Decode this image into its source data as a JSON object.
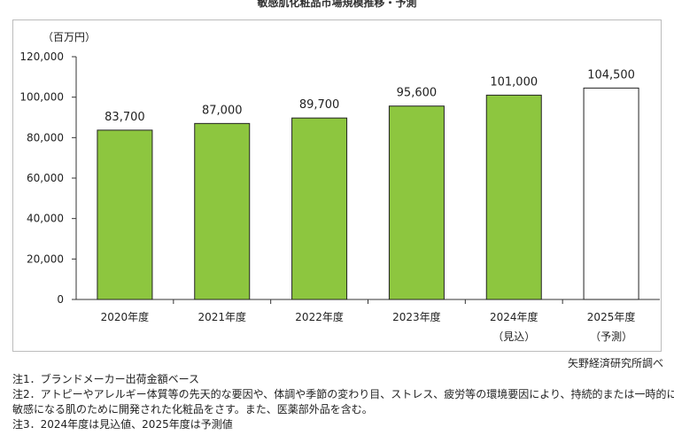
{
  "chart_data": {
    "type": "bar",
    "title": "敏感肌化粧品市場規模推移・予測",
    "unit_label": "（百万円）",
    "categories": [
      "2020年度",
      "2021年度",
      "2022年度",
      "2023年度",
      "2024年度",
      "2025年度"
    ],
    "category_sublabels": [
      "",
      "",
      "",
      "",
      "（見込）",
      "（予測）"
    ],
    "values": [
      83700,
      87000,
      89700,
      95600,
      101000,
      104500
    ],
    "value_labels": [
      "83,700",
      "87,000",
      "89,700",
      "95,600",
      "101,000",
      "104,500"
    ],
    "bar_styles": [
      "actual",
      "actual",
      "actual",
      "actual",
      "actual",
      "forecast"
    ],
    "ylim": [
      0,
      120000
    ],
    "yticks": [
      0,
      20000,
      40000,
      60000,
      80000,
      100000,
      120000
    ],
    "ytick_labels": [
      "0",
      "20,000",
      "40,000",
      "60,000",
      "80,000",
      "100,000",
      "120,000"
    ],
    "grid": false,
    "colors": {
      "actual_fill": "#8dc63f",
      "forecast_fill": "#ffffff",
      "bar_stroke": "#222222",
      "axis": "#333333"
    }
  },
  "source": "矢野経済研究所調べ",
  "notes": [
    "注1．ブランドメーカー出荷金額ベース",
    "注2．アトピーやアレルギー体質等の先天的な要因や、体調や季節の変わり目、ストレス、疲労等の環境要因により、持続的または一時的に",
    "敏感になる肌のために開発された化粧品をさす。また、医薬部外品を含む。",
    "注3．2024年度は見込値、2025年度は予測値"
  ]
}
